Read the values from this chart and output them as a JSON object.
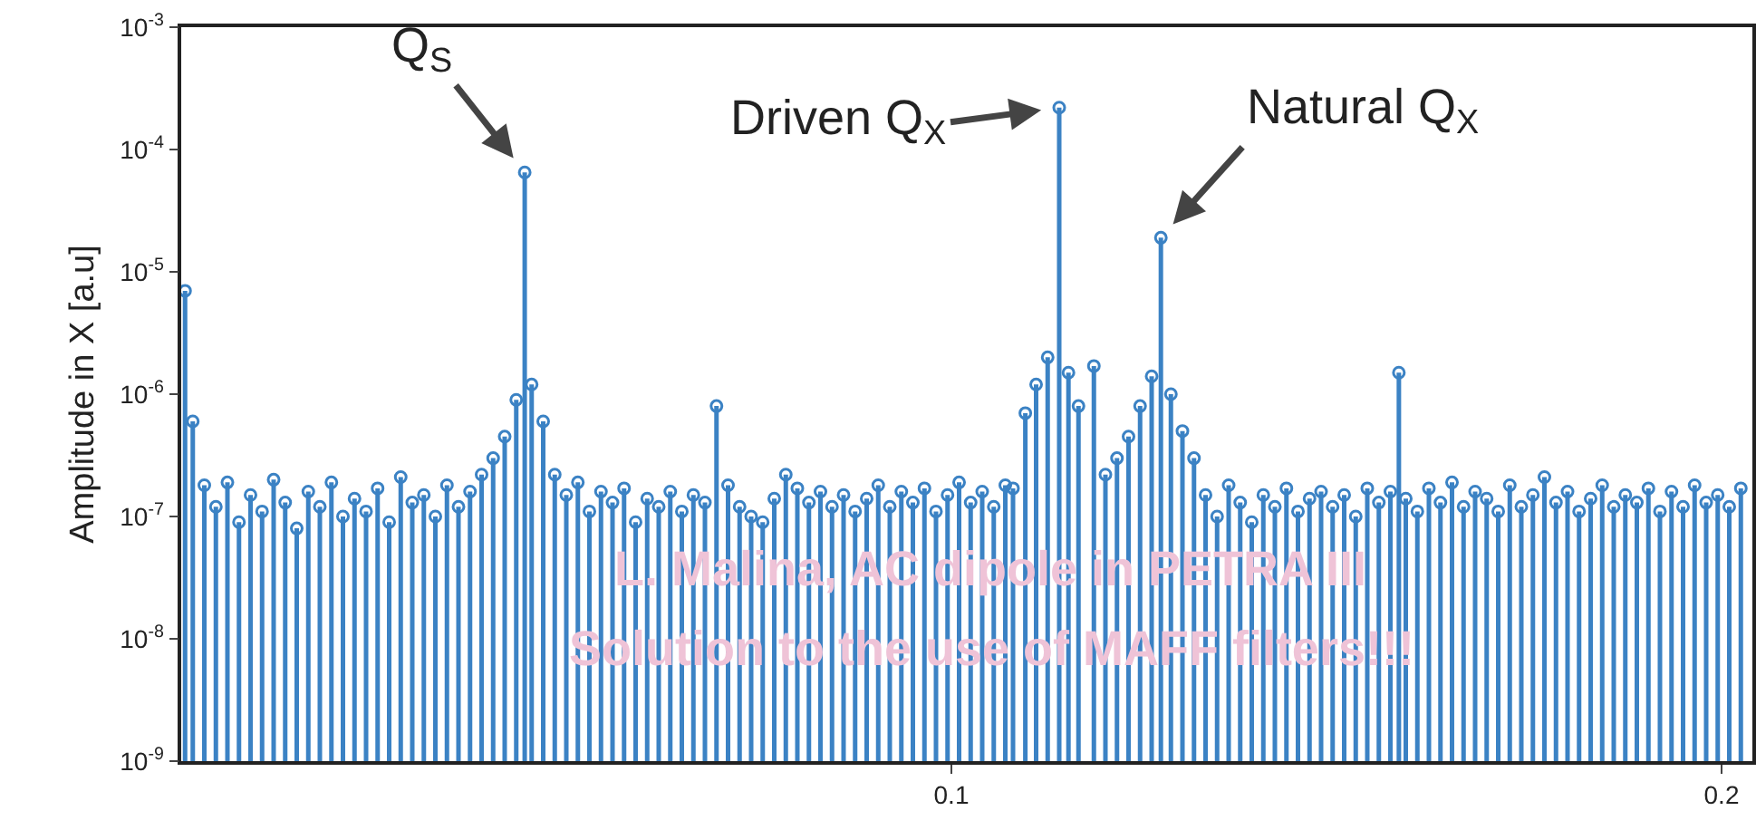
{
  "chart_data": {
    "type": "lollipop",
    "ylabel": "Amplitude in X [a.u]",
    "log": true,
    "marker": "circle",
    "xlim": [
      0,
      0.204
    ],
    "xticks": [
      0.1,
      0.2
    ],
    "ylim": [
      1e-09,
      0.001
    ],
    "yticks": [
      {
        "value": 1e-09,
        "label": "10$^{-9}$"
      },
      {
        "value": 1e-08,
        "label": "10$^{-8}$"
      },
      {
        "value": 1e-07,
        "label": "10$^{-7}$"
      },
      {
        "value": 1e-06,
        "label": "10$^{-6}$"
      },
      {
        "value": 1e-05,
        "label": "10$^{-5}$"
      },
      {
        "value": 0.0001,
        "label": "10$^{-4}$"
      },
      {
        "value": 0.001,
        "label": "10$^{-3}$"
      }
    ],
    "annotations": [
      {
        "text": "Q$_{S}$",
        "x": 0.0446,
        "y": 6.5e-05
      },
      {
        "text": "Driven Q$_{X}$",
        "x": 0.114,
        "y": 0.00022
      },
      {
        "text": "Natural Q$_{X}$",
        "x": 0.1272,
        "y": 1.9e-05
      },
      "L. Malina, AC dipole in PETRA III",
      "Solution to the use of MAFF filters!!!"
    ],
    "series": [
      {
        "color": "#3b82c4",
        "x": [
          0.0005,
          0.0015,
          0.003,
          0.0045,
          0.006,
          0.0075,
          0.009,
          0.0105,
          0.012,
          0.0135,
          0.015,
          0.0165,
          0.018,
          0.0195,
          0.021,
          0.0225,
          0.024,
          0.0255,
          0.027,
          0.0285,
          0.03,
          0.0315,
          0.033,
          0.0345,
          0.036,
          0.0375,
          0.039,
          0.0405,
          0.042,
          0.0435,
          0.0446,
          0.0455,
          0.047,
          0.0485,
          0.05,
          0.0515,
          0.053,
          0.0545,
          0.056,
          0.0575,
          0.059,
          0.0605,
          0.062,
          0.0635,
          0.065,
          0.0665,
          0.068,
          0.0695,
          0.071,
          0.0725,
          0.074,
          0.0755,
          0.077,
          0.0785,
          0.08,
          0.0815,
          0.083,
          0.0845,
          0.086,
          0.0875,
          0.089,
          0.0905,
          0.092,
          0.0935,
          0.095,
          0.0965,
          0.098,
          0.0995,
          0.101,
          0.1025,
          0.104,
          0.1055,
          0.107,
          0.108,
          0.1096,
          0.111,
          0.1125,
          0.114,
          0.1152,
          0.1165,
          0.1185,
          0.12,
          0.1215,
          0.123,
          0.1245,
          0.126,
          0.1272,
          0.1285,
          0.13,
          0.1315,
          0.133,
          0.1345,
          0.136,
          0.1375,
          0.139,
          0.1405,
          0.142,
          0.1435,
          0.145,
          0.1465,
          0.148,
          0.1495,
          0.151,
          0.1525,
          0.154,
          0.1555,
          0.157,
          0.1581,
          0.159,
          0.1605,
          0.162,
          0.1635,
          0.165,
          0.1665,
          0.168,
          0.1695,
          0.171,
          0.1725,
          0.174,
          0.1755,
          0.177,
          0.1785,
          0.18,
          0.1815,
          0.183,
          0.1845,
          0.186,
          0.1875,
          0.189,
          0.1905,
          0.192,
          0.1935,
          0.195,
          0.1965,
          0.198,
          0.1995,
          0.201,
          0.2025
        ],
        "values": [
          7e-06,
          6e-07,
          1.8e-07,
          1.2e-07,
          1.9e-07,
          9e-08,
          1.5e-07,
          1.1e-07,
          2e-07,
          1.3e-07,
          8e-08,
          1.6e-07,
          1.2e-07,
          1.9e-07,
          1e-07,
          1.4e-07,
          1.1e-07,
          1.7e-07,
          9e-08,
          2.1e-07,
          1.3e-07,
          1.5e-07,
          1e-07,
          1.8e-07,
          1.2e-07,
          1.6e-07,
          2.2e-07,
          3e-07,
          4.5e-07,
          9e-07,
          6.5e-05,
          1.2e-06,
          6e-07,
          2.2e-07,
          1.5e-07,
          1.9e-07,
          1.1e-07,
          1.6e-07,
          1.3e-07,
          1.7e-07,
          9e-08,
          1.4e-07,
          1.2e-07,
          1.6e-07,
          1.1e-07,
          1.5e-07,
          1.3e-07,
          8e-07,
          1.8e-07,
          1.2e-07,
          1e-07,
          9e-08,
          1.4e-07,
          2.2e-07,
          1.7e-07,
          1.3e-07,
          1.6e-07,
          1.2e-07,
          1.5e-07,
          1.1e-07,
          1.4e-07,
          1.8e-07,
          1.2e-07,
          1.6e-07,
          1.3e-07,
          1.7e-07,
          1.1e-07,
          1.5e-07,
          1.9e-07,
          1.3e-07,
          1.6e-07,
          1.2e-07,
          1.8e-07,
          1.7e-07,
          7e-07,
          1.2e-06,
          2e-06,
          0.00022,
          1.5e-06,
          8e-07,
          1.7e-06,
          2.2e-07,
          3e-07,
          4.5e-07,
          8e-07,
          1.4e-06,
          1.9e-05,
          1e-06,
          5e-07,
          3e-07,
          1.5e-07,
          1e-07,
          1.8e-07,
          1.3e-07,
          9e-08,
          1.5e-07,
          1.2e-07,
          1.7e-07,
          1.1e-07,
          1.4e-07,
          1.6e-07,
          1.2e-07,
          1.5e-07,
          1e-07,
          1.7e-07,
          1.3e-07,
          1.6e-07,
          1.5e-06,
          1.4e-07,
          1.1e-07,
          1.7e-07,
          1.3e-07,
          1.9e-07,
          1.2e-07,
          1.6e-07,
          1.4e-07,
          1.1e-07,
          1.8e-07,
          1.2e-07,
          1.5e-07,
          2.1e-07,
          1.3e-07,
          1.6e-07,
          1.1e-07,
          1.4e-07,
          1.8e-07,
          1.2e-07,
          1.5e-07,
          1.3e-07,
          1.7e-07,
          1.1e-07,
          1.6e-07,
          1.2e-07,
          1.8e-07,
          1.3e-07,
          1.5e-07,
          1.2e-07,
          1.7e-07
        ]
      }
    ]
  }
}
